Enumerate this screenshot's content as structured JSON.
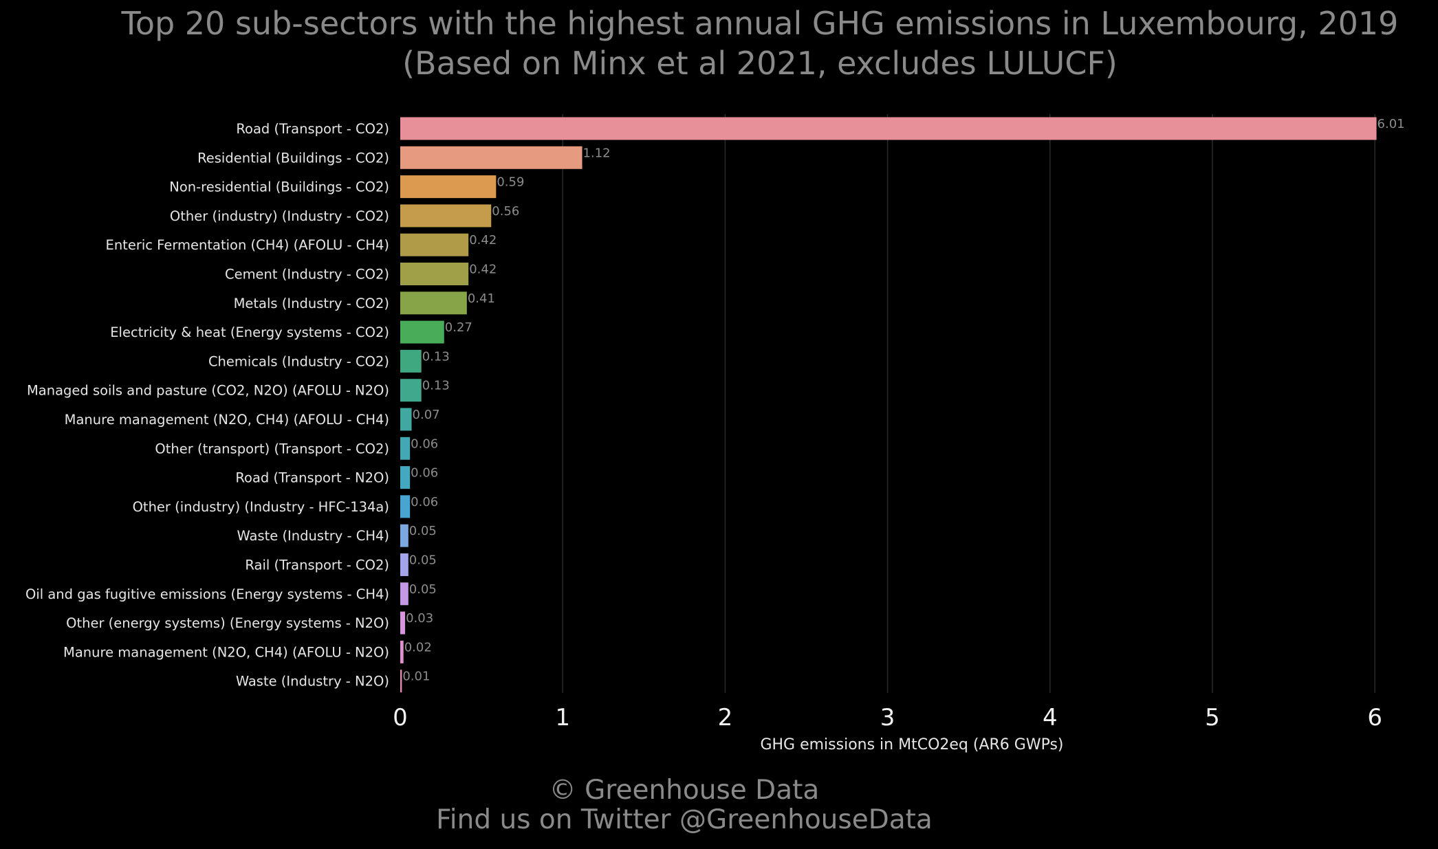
{
  "chart_data": {
    "type": "bar",
    "orientation": "horizontal",
    "title": "Top 20 sub-sectors with the highest annual GHG emissions in Luxembourg, 2019",
    "subtitle": "(Based on Minx et al 2021, excludes LULUCF)",
    "xlabel": "GHG emissions in MtCO2eq (AR6 GWPs)",
    "ylabel": "",
    "xlim": [
      0,
      6.2
    ],
    "xticks": [
      0,
      1,
      2,
      3,
      4,
      5,
      6
    ],
    "grid": "vertical",
    "categories": [
      "Road (Transport - CO2)",
      "Residential (Buildings - CO2)",
      "Non-residential (Buildings - CO2)",
      "Other (industry) (Industry - CO2)",
      "Enteric Fermentation (CH4) (AFOLU - CH4)",
      "Cement (Industry - CO2)",
      "Metals (Industry - CO2)",
      "Electricity & heat (Energy systems - CO2)",
      "Chemicals (Industry - CO2)",
      "Managed soils and pasture (CO2, N2O) (AFOLU - N2O)",
      "Manure management (N2O, CH4) (AFOLU - CH4)",
      "Other (transport) (Transport - CO2)",
      "Road (Transport - N2O)",
      "Other (industry) (Industry - HFC-134a)",
      "Waste (Industry - CH4)",
      "Rail  (Transport - CO2)",
      "Oil and gas fugitive emissions (Energy systems - CH4)",
      "Other (energy systems) (Energy systems - N2O)",
      "Manure management (N2O, CH4) (AFOLU - N2O)",
      "Waste (Industry - N2O)"
    ],
    "values": [
      6.01,
      1.12,
      0.59,
      0.56,
      0.42,
      0.42,
      0.41,
      0.27,
      0.13,
      0.13,
      0.07,
      0.06,
      0.06,
      0.06,
      0.05,
      0.05,
      0.05,
      0.03,
      0.02,
      0.01
    ],
    "value_labels": [
      "6.01",
      "1.12",
      "0.59",
      "0.56",
      "0.42",
      "0.42",
      "0.41",
      "0.27",
      "0.13",
      "0.13",
      "0.07",
      "0.06",
      "0.06",
      "0.06",
      "0.05",
      "0.05",
      "0.05",
      "0.03",
      "0.02",
      "0.01"
    ],
    "colors": [
      "#e8909a",
      "#e69a80",
      "#dc9a50",
      "#c49c4c",
      "#b09c48",
      "#a0a048",
      "#88a448",
      "#48ac58",
      "#40a880",
      "#40a88c",
      "#40a8a0",
      "#44a8b4",
      "#44a8c0",
      "#48a4d0",
      "#7ca8e0",
      "#a4a4e8",
      "#c498e4",
      "#d894dc",
      "#e090cc",
      "#e48cb4"
    ]
  },
  "footer": {
    "copyright": "© Greenhouse Data",
    "twitter": "Find us on Twitter @GreenhouseData"
  },
  "colors": {
    "background": "#000000",
    "title": "#8a8a8a",
    "grid": "#2a2a2a"
  }
}
